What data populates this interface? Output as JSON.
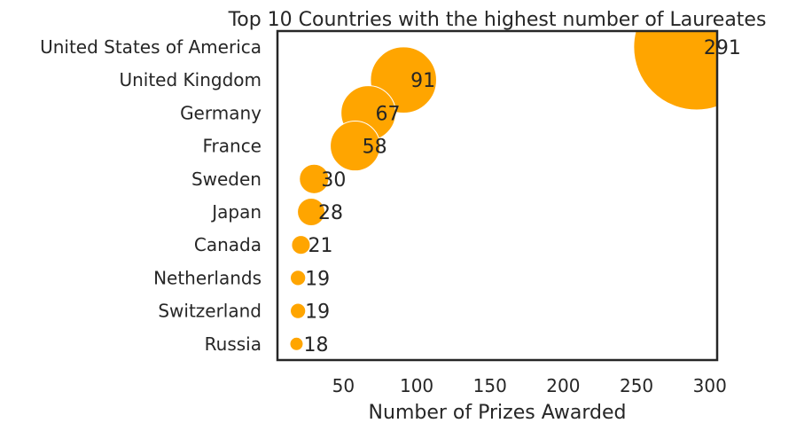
{
  "chart_data": {
    "type": "scatter",
    "title": "Top 10 Countries with the highest number of Laureates",
    "xlabel": "Number of Prizes Awarded",
    "ylabel": "",
    "xlim": [
      5,
      305
    ],
    "xticks": [
      50,
      100,
      150,
      200,
      250,
      300
    ],
    "grid": false,
    "legend": "none",
    "marker_color": "#FFA500",
    "categories": [
      "United States of America",
      "United Kingdom",
      "Germany",
      "France",
      "Sweden",
      "Japan",
      "Canada",
      "Netherlands",
      "Switzerland",
      "Russia"
    ],
    "values": [
      291,
      91,
      67,
      58,
      30,
      28,
      21,
      19,
      19,
      18
    ],
    "data_labels": [
      "291",
      "91",
      "67",
      "58",
      "30",
      "28",
      "21",
      "19",
      "19",
      "18"
    ]
  }
}
